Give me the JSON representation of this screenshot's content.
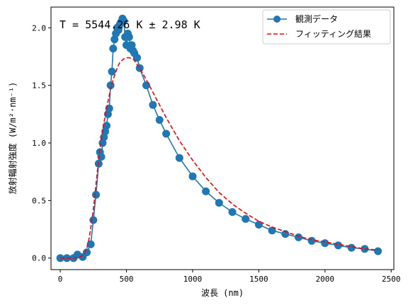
{
  "chart_data": {
    "type": "line",
    "annotation": "T = 5544.26 K ± 2.98 K",
    "xlabel": "波長 (nm)",
    "ylabel": "放射輻射強度 (W/m²·nm⁻¹)",
    "xlim": [
      -70,
      2520
    ],
    "ylim": [
      -0.1,
      2.18
    ],
    "x_ticks": [
      0,
      500,
      1000,
      1500,
      2000,
      2500
    ],
    "y_ticks": [
      0.0,
      0.5,
      1.0,
      1.5,
      2.0
    ],
    "grid": false,
    "legend_position": "top-right",
    "colors": {
      "observed": "#1f77b4",
      "fit": "#ff0000"
    },
    "series": [
      {
        "name": "観測データ",
        "style": "line-with-circle-markers",
        "x": [
          0,
          50,
          100,
          130,
          170,
          200,
          230,
          250,
          270,
          290,
          300,
          310,
          320,
          330,
          340,
          350,
          360,
          370,
          380,
          390,
          400,
          410,
          420,
          430,
          440,
          450,
          460,
          470,
          480,
          490,
          500,
          510,
          520,
          530,
          540,
          550,
          560,
          580,
          600,
          650,
          700,
          750,
          800,
          900,
          1000,
          1100,
          1200,
          1300,
          1400,
          1500,
          1600,
          1700,
          1800,
          1900,
          2000,
          2100,
          2200,
          2300,
          2400
        ],
        "y": [
          0.0,
          0.0,
          0.0,
          0.03,
          0.01,
          0.05,
          0.12,
          0.33,
          0.55,
          0.82,
          0.92,
          0.88,
          1.0,
          1.05,
          1.1,
          1.15,
          1.25,
          1.3,
          1.5,
          1.62,
          1.82,
          1.9,
          1.95,
          2.0,
          1.98,
          2.03,
          2.05,
          2.08,
          2.06,
          1.92,
          1.85,
          1.95,
          1.92,
          1.82,
          1.85,
          1.8,
          1.78,
          1.74,
          1.65,
          1.5,
          1.33,
          1.2,
          1.08,
          0.87,
          0.71,
          0.58,
          0.48,
          0.4,
          0.34,
          0.29,
          0.24,
          0.21,
          0.18,
          0.15,
          0.13,
          0.11,
          0.09,
          0.08,
          0.06
        ]
      },
      {
        "name": "フィッティング結果",
        "style": "dashed-line",
        "x": [
          0,
          100,
          150,
          180,
          200,
          220,
          250,
          280,
          300,
          330,
          350,
          380,
          400,
          430,
          450,
          480,
          500,
          520,
          550,
          600,
          650,
          700,
          800,
          900,
          1000,
          1100,
          1200,
          1300,
          1400,
          1500,
          1600,
          1700,
          1800,
          1900,
          2000,
          2100,
          2200,
          2300,
          2400
        ],
        "y": [
          0.0,
          0.0,
          0.01,
          0.03,
          0.08,
          0.18,
          0.42,
          0.75,
          0.95,
          1.17,
          1.3,
          1.47,
          1.55,
          1.65,
          1.7,
          1.73,
          1.74,
          1.74,
          1.73,
          1.65,
          1.55,
          1.44,
          1.22,
          1.02,
          0.85,
          0.7,
          0.57,
          0.47,
          0.39,
          0.32,
          0.27,
          0.23,
          0.19,
          0.16,
          0.14,
          0.12,
          0.1,
          0.08,
          0.07
        ]
      }
    ]
  }
}
